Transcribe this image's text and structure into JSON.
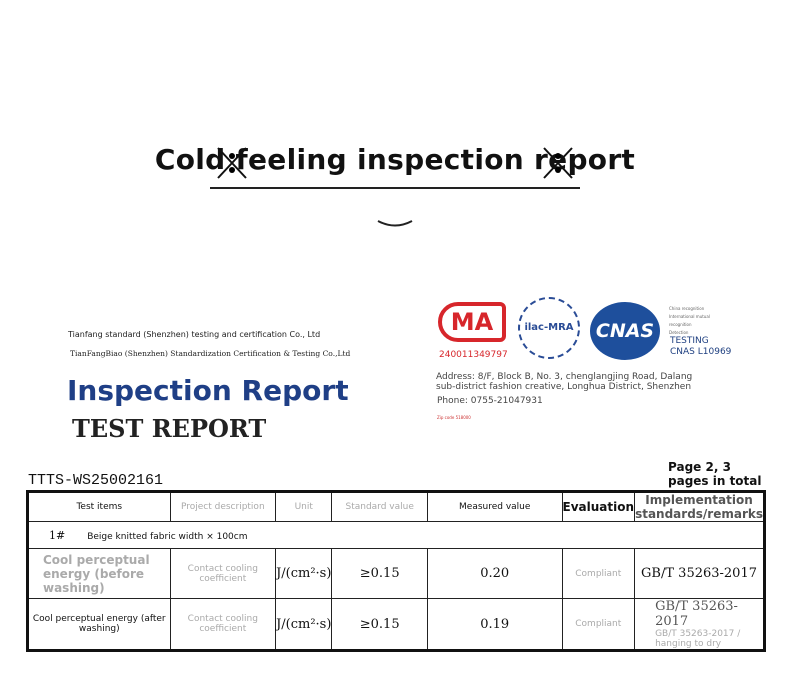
{
  "banner": {
    "title": "Cold feeling inspection report",
    "icon": "snowflake-cross-icon"
  },
  "header": {
    "company_cn_en": "Tianfang standard (Shenzhen) testing and certification Co., Ltd",
    "company_en": "TianFangBiao (Shenzhen) Standardization Certification & Testing Co.,Ltd",
    "title": "Inspection Report",
    "subtitle": "TEST REPORT"
  },
  "logos": {
    "cma": "MA",
    "cma_number": "240011349797",
    "ilac": "ilac-MRA",
    "cnas": "CNAS",
    "cnas_notes": [
      "China recognition",
      "International mutual recognition",
      "Detection"
    ],
    "testing": "TESTING",
    "cnas_id": "CNAS L10969",
    "cma_color": "#d7262b",
    "cnas_color": "#1e4f9c"
  },
  "contact": {
    "address_line1": "Address: 8/F, Block B, No. 3, chenglangjing Road, Dalang",
    "address_line2": "sub-district fashion creative, Longhua District, Shenzhen",
    "phone": "Phone: 0755-21047931",
    "zip": "Zip code 518000"
  },
  "report": {
    "number": "TTTS-WS25002161",
    "page": "Page 2, 3 pages in total"
  },
  "table": {
    "headers": [
      "Test items",
      "Project description",
      "Unit",
      "Standard value",
      "Measured value",
      "Evaluation",
      "Implementation standards/remarks"
    ],
    "sample": {
      "id": "1#",
      "desc": "Beige knitted fabric width × 100cm"
    },
    "rows": [
      {
        "item": "Cool perceptual energy (before washing)",
        "desc": "Contact cooling coefficient",
        "unit": "J/(cm²·s)",
        "standard": "≥0.15",
        "measured": "0.20",
        "evaluation": "Compliant",
        "remark": "GB/T 35263-2017"
      },
      {
        "item": "Cool perceptual energy (after washing)",
        "desc": "Contact cooling coefficient",
        "unit": "J/(cm²·s)",
        "standard": "≥0.15",
        "measured": "0.19",
        "evaluation": "Compliant",
        "remark": "GB/T 35263-2017",
        "remark2": "GB/T 35263-2017 / hanging to dry"
      }
    ]
  }
}
